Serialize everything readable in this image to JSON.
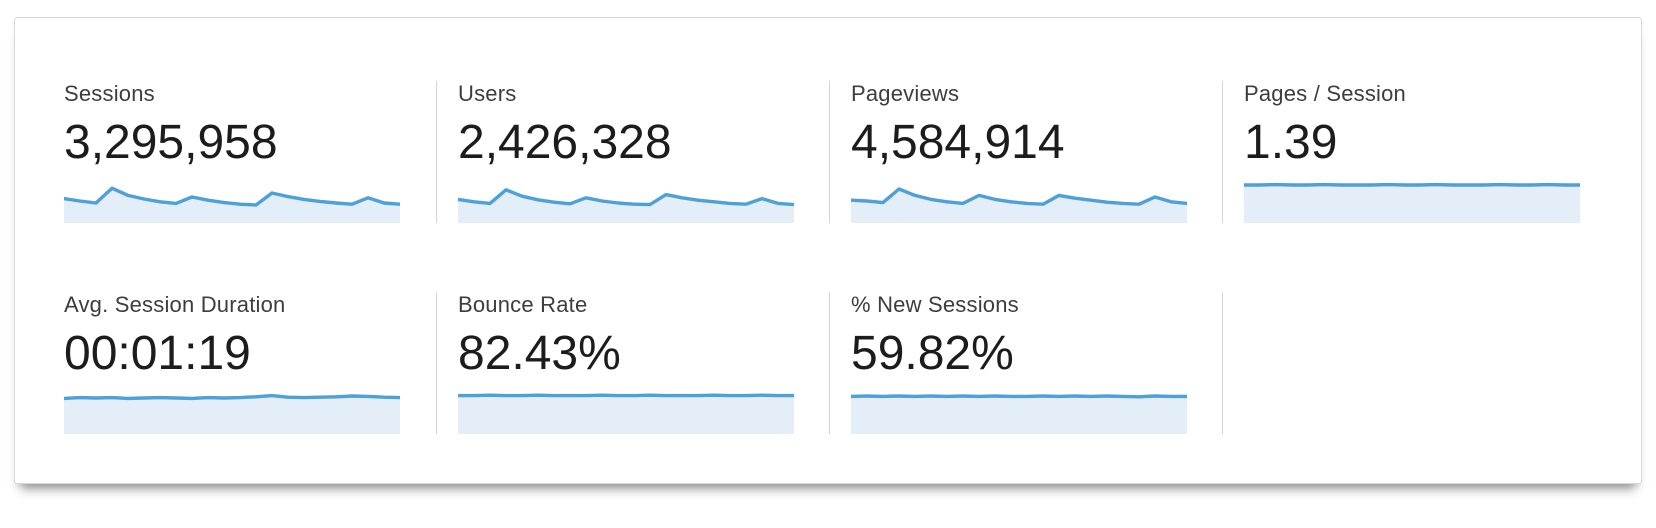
{
  "panel": {
    "type": "analytics-metrics-summary"
  },
  "colors": {
    "sparkline_stroke": "#4da0d8",
    "sparkline_fill": "#e3eef8",
    "divider": "#d4d4d4",
    "label_text": "#3d3d3d",
    "value_text": "#1c1c1c"
  },
  "metrics": [
    {
      "id": "sessions",
      "label": "Sessions",
      "value": "3,295,958",
      "sparkline": [
        56,
        50,
        45,
        82,
        64,
        55,
        48,
        44,
        60,
        52,
        46,
        42,
        40,
        70,
        61,
        54,
        49,
        45,
        42,
        58,
        45,
        42
      ]
    },
    {
      "id": "users",
      "label": "Users",
      "value": "2,426,328",
      "sparkline": [
        54,
        48,
        44,
        78,
        62,
        53,
        47,
        43,
        58,
        50,
        45,
        42,
        41,
        66,
        58,
        52,
        48,
        44,
        42,
        56,
        44,
        41
      ]
    },
    {
      "id": "pageviews",
      "label": "Pageviews",
      "value": "4,584,914",
      "sparkline": [
        52,
        50,
        46,
        80,
        64,
        54,
        48,
        44,
        64,
        54,
        48,
        44,
        42,
        64,
        57,
        52,
        47,
        44,
        42,
        60,
        48,
        44
      ]
    },
    {
      "id": "pages-per-session",
      "label": "Pages / Session",
      "value": "1.39",
      "sparkline": [
        90,
        90,
        91,
        90,
        90,
        91,
        90,
        90,
        90,
        91,
        90,
        90,
        91,
        90,
        90,
        90,
        91,
        90,
        90,
        91,
        90,
        90
      ]
    },
    {
      "id": "avg-session-duration",
      "label": "Avg. Session Duration",
      "value": "00:01:19",
      "sparkline": [
        84,
        86,
        85,
        86,
        84,
        85,
        86,
        85,
        84,
        86,
        85,
        86,
        88,
        91,
        87,
        86,
        87,
        88,
        90,
        89,
        87,
        86
      ]
    },
    {
      "id": "bounce-rate",
      "label": "Bounce Rate",
      "value": "82.43%",
      "sparkline": [
        91,
        91,
        92,
        91,
        91,
        92,
        91,
        91,
        91,
        92,
        91,
        91,
        92,
        91,
        91,
        91,
        92,
        91,
        91,
        92,
        91,
        91
      ]
    },
    {
      "id": "percent-new-sessions",
      "label": "% New Sessions",
      "value": "59.82%",
      "sparkline": [
        89,
        90,
        89,
        90,
        89,
        90,
        89,
        90,
        89,
        90,
        89,
        89,
        90,
        89,
        90,
        89,
        90,
        89,
        88,
        90,
        89,
        89
      ]
    }
  ]
}
